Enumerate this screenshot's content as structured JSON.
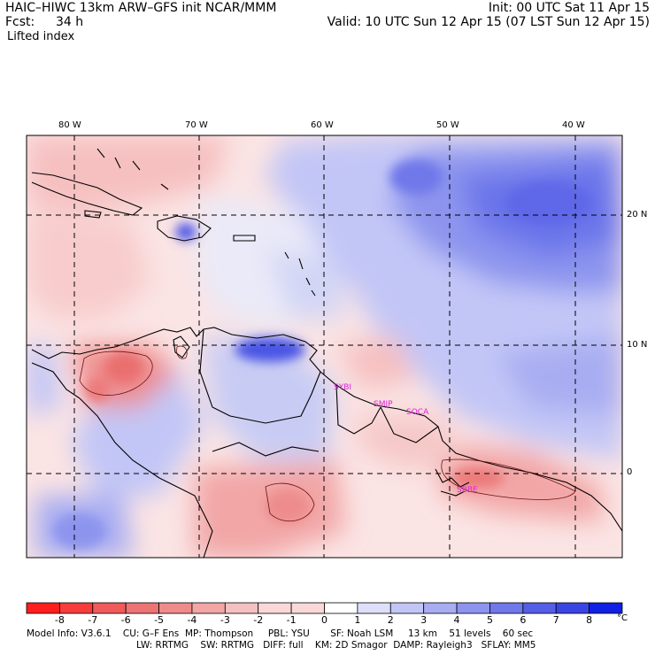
{
  "header": {
    "title": "HAIC–HIWC 13km ARW–GFS init   NCAR/MMM",
    "init": "Init: 00 UTC Sat 11 Apr 15",
    "fcst_label": "Fcst:",
    "fcst_value": "34 h",
    "valid": "Valid: 10 UTC Sun 12 Apr 15 (07 LST Sun 12 Apr 15)",
    "field": "Lifted index"
  },
  "map": {
    "lon_labels": [
      "80 W",
      "70 W",
      "60 W",
      "50 W",
      "40 W"
    ],
    "lat_labels": [
      "20 N",
      "10 N",
      "0"
    ],
    "stations": [
      "SYBI",
      "SMJP",
      "SOCA",
      "SBBE"
    ],
    "station_color": "#e020e0"
  },
  "colorbar": {
    "labels": [
      "-8",
      "-7",
      "-6",
      "-5",
      "-4",
      "-3",
      "-2",
      "-1",
      "0",
      "1",
      "2",
      "3",
      "4",
      "5",
      "6",
      "7",
      "8"
    ],
    "unit": "°C",
    "colors": [
      "#ff1e1e",
      "#f73c3c",
      "#f05a5a",
      "#ec7474",
      "#ee8c8c",
      "#f2a6a6",
      "#f6c0c0",
      "#fad8d8",
      "#ffffff",
      "#dee0fa",
      "#c2c6f6",
      "#a8adf2",
      "#8c94ee",
      "#7078ea",
      "#545ee6",
      "#3a44e4",
      "#1020e4"
    ]
  },
  "model_info": {
    "line1": "Model Info: V3.6.1    CU: G–F Ens  MP: Thompson     PBL: YSU       SF: Noah LSM     13 km    51 levels    60 sec",
    "line2": "LW: RRTMG    SW: RRTMG   DIFF: full    KM: 2D Smagor  DAMP: Rayleigh3   SFLAY: MM5"
  }
}
